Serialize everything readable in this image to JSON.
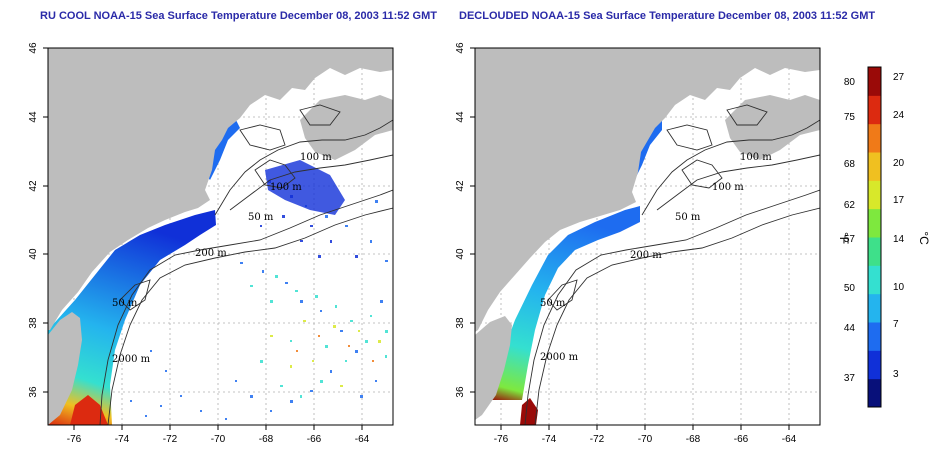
{
  "left_panel": {
    "title": "RU COOL NOAA-15 Sea Surface Temperature December 08, 2003 11:52 GMT",
    "lon_ticks": [
      "-76",
      "-74",
      "-72",
      "-70",
      "-68",
      "-66",
      "-64"
    ],
    "lat_ticks": [
      "46",
      "44",
      "42",
      "40",
      "38",
      "36"
    ],
    "contour_labels": [
      "100 m",
      "100 m",
      "50 m",
      "200 m",
      "50 m",
      "2000 m"
    ]
  },
  "right_panel": {
    "title": "DECLOUDED NOAA-15 Sea Surface Temperature December 08, 2003 11:52 GMT",
    "lon_ticks": [
      "-76",
      "-74",
      "-72",
      "-70",
      "-68",
      "-66",
      "-64"
    ],
    "lat_ticks": [
      "46",
      "44",
      "42",
      "40",
      "38",
      "36"
    ],
    "contour_labels": [
      "100 m",
      "100 m",
      "50 m",
      "200 m",
      "50 m",
      "2000 m"
    ]
  },
  "colorbar": {
    "fahrenheit_ticks": [
      "80",
      "75",
      "68",
      "62",
      "57",
      "50",
      "44",
      "37"
    ],
    "celsius_ticks": [
      "27",
      "24",
      "20",
      "17",
      "14",
      "10",
      "7",
      "3"
    ],
    "fahrenheit_unit": "°F",
    "celsius_unit": "°C",
    "colors": [
      "#08107a",
      "#1030d8",
      "#1e6cf0",
      "#24b4ee",
      "#34e0d0",
      "#3ee08a",
      "#7ee83e",
      "#d8e82a",
      "#f0c020",
      "#f07a18",
      "#dc2a10",
      "#9a0a08"
    ]
  },
  "colors": {
    "land": "#bdbdbd",
    "ocean": "#ffffff",
    "title": "#2a2aa8",
    "grid": "#b0b0b0",
    "contour": "#303030"
  }
}
